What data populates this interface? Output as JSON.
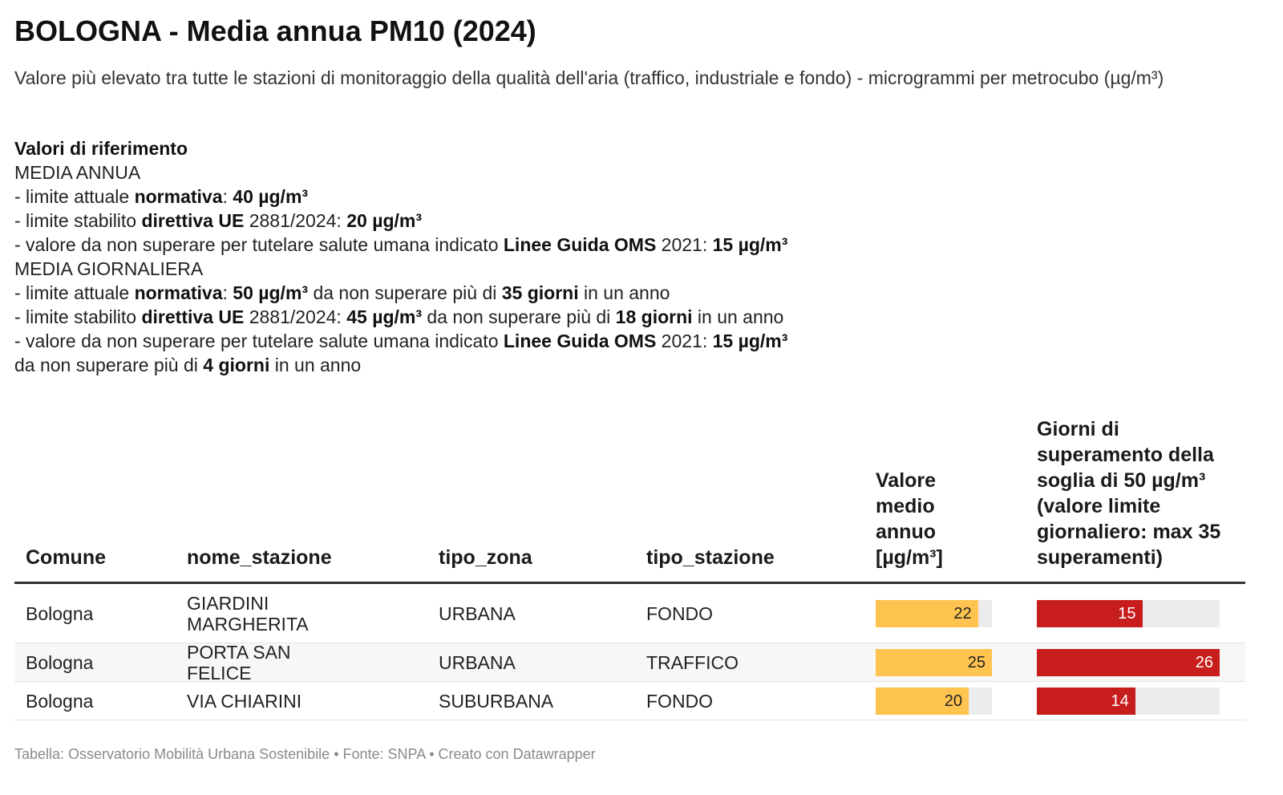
{
  "title": "BOLOGNA - Media annua PM10 (2024)",
  "subtitle": "Valore più elevato tra tutte le stazioni di monitoraggio della qualità dell'aria (traffico, industriale e fondo) - microgrammi per metrocubo (µg/m³)",
  "notes": [
    [
      {
        "t": "Valori di riferimento",
        "b": true
      }
    ],
    [
      {
        "t": "MEDIA ANNUA"
      }
    ],
    [
      {
        "t": "- limite attuale "
      },
      {
        "t": "normativa",
        "b": true
      },
      {
        "t": ": "
      },
      {
        "t": "40 µg/m³",
        "b": true
      }
    ],
    [
      {
        "t": "- limite stabilito "
      },
      {
        "t": "direttiva UE",
        "b": true
      },
      {
        "t": " 2881/2024: "
      },
      {
        "t": "20 µg/m³",
        "b": true
      }
    ],
    [
      {
        "t": "- valore da non superare per tutelare salute umana indicato "
      },
      {
        "t": "Linee Guida OMS",
        "b": true
      },
      {
        "t": " 2021: "
      },
      {
        "t": "15 µg/m³",
        "b": true
      }
    ],
    [
      {
        "t": "MEDIA GIORNALIERA"
      }
    ],
    [
      {
        "t": "- limite attuale "
      },
      {
        "t": "normativa",
        "b": true
      },
      {
        "t": ": "
      },
      {
        "t": "50 µg/m³",
        "b": true
      },
      {
        "t": " da non superare più di "
      },
      {
        "t": "35 giorni",
        "b": true
      },
      {
        "t": " in un anno"
      }
    ],
    [
      {
        "t": "- limite stabilito "
      },
      {
        "t": "direttiva UE",
        "b": true
      },
      {
        "t": " 2881/2024: "
      },
      {
        "t": "45 µg/m³",
        "b": true
      },
      {
        "t": " da non superare più di "
      },
      {
        "t": "18 giorni",
        "b": true
      },
      {
        "t": " in un anno"
      }
    ],
    [
      {
        "t": "- valore da non superare per tutelare salute umana indicato "
      },
      {
        "t": "Linee Guida OMS",
        "b": true
      },
      {
        "t": " 2021: "
      },
      {
        "t": "15 µg/m³",
        "b": true
      }
    ],
    [
      {
        "t": "da non superare più di "
      },
      {
        "t": "4 giorni",
        "b": true
      },
      {
        "t": " in un anno"
      }
    ]
  ],
  "columns": [
    "Comune",
    "nome_stazione",
    "tipo_zona",
    "tipo_stazione",
    "Valore medio annuo [µg/m³]",
    "Giorni di superamento della soglia di 50 µg/m³ (valore limite giornaliero: max 35 superamenti)"
  ],
  "colors": {
    "bar_annual": "#fec44f",
    "bar_days": "#c71e1d",
    "bar_background": "#ececec",
    "header_rule": "#333333"
  },
  "chart_data": {
    "type": "table",
    "annual_max": 25,
    "days_max": 26,
    "rows": [
      {
        "comune": "Bologna",
        "nome_stazione": "GIARDINI MARGHERITA",
        "tipo_zona": "URBANA",
        "tipo_stazione": "FONDO",
        "valore_medio": 22,
        "giorni_superamento": 15
      },
      {
        "comune": "Bologna",
        "nome_stazione": "PORTA SAN FELICE",
        "tipo_zona": "URBANA",
        "tipo_stazione": "TRAFFICO",
        "valore_medio": 25,
        "giorni_superamento": 26
      },
      {
        "comune": "Bologna",
        "nome_stazione": "VIA CHIARINI",
        "tipo_zona": "SUBURBANA",
        "tipo_stazione": "FONDO",
        "valore_medio": 20,
        "giorni_superamento": 14
      }
    ]
  },
  "source": "Tabella: Osservatorio Mobilità Urbana Sostenibile • Fonte: SNPA • Creato con Datawrapper"
}
